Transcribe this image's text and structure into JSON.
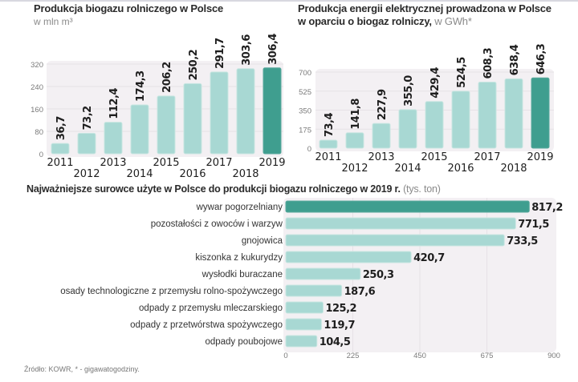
{
  "chart_data": [
    {
      "type": "bar",
      "title": "Produkcja biogazu rolniczego w Polsce",
      "subtitle": "w mln m³",
      "xlabel": "",
      "ylabel": "",
      "categories": [
        "2011",
        "2012",
        "2013",
        "2014",
        "2015",
        "2016",
        "2017",
        "2018",
        "2019"
      ],
      "values": [
        36.7,
        73.2,
        112.4,
        174.3,
        206.2,
        250.2,
        291.7,
        303.6,
        306.4
      ],
      "value_labels": [
        "36,7",
        "73,2",
        "112,4",
        "174,3",
        "206,2",
        "250,2",
        "291,7",
        "303,6",
        "306,4"
      ],
      "yticks": [
        0,
        80,
        160,
        240,
        320
      ],
      "ylim": [
        0,
        320
      ],
      "grid": true,
      "highlight_index": 8
    },
    {
      "type": "bar",
      "title": "Produkcja energii elektrycznej prowadzona w Polsce",
      "title_line2": "w oparciu o biogaz rolniczy,",
      "unit": "w GWh*",
      "xlabel": "",
      "ylabel": "",
      "categories": [
        "2011",
        "2012",
        "2013",
        "2014",
        "2015",
        "2016",
        "2017",
        "2018",
        "2019"
      ],
      "values": [
        73.4,
        141.8,
        227.9,
        355.0,
        429.4,
        524.5,
        608.3,
        638.4,
        646.3
      ],
      "value_labels": [
        "73,4",
        "141,8",
        "227,9",
        "355,0",
        "429,4",
        "524,5",
        "608,3",
        "638,4",
        "646,3"
      ],
      "yticks": [
        0,
        175,
        350,
        525,
        700
      ],
      "ylim": [
        0,
        700
      ],
      "grid": true,
      "highlight_index": 8
    },
    {
      "type": "bar",
      "orientation": "horizontal",
      "title": "Najważniejsze surowce użyte w Polsce do produkcji biogazu rolniczego w 2019 r.",
      "unit": "(tys. ton)",
      "categories": [
        "wywar pogorzelniany",
        "pozostałości z owoców i warzyw",
        "gnojowica",
        "kiszonka z kukurydzy",
        "wysłodki buraczane",
        "osady technologiczne z przemysłu rolno-spożywczego",
        "odpady z przemysłu mleczarskiego",
        "odpady z przetwórstwa spożywczego",
        "odpady poubojowe"
      ],
      "values": [
        817.2,
        771.5,
        733.5,
        420.7,
        250.3,
        187.6,
        125.2,
        119.7,
        104.5
      ],
      "value_labels": [
        "817,2",
        "771,5",
        "733,5",
        "420,7",
        "250,3",
        "187,6",
        "125,2",
        "119,7",
        "104,5"
      ],
      "xticks": [
        0,
        225,
        450,
        675,
        900
      ],
      "xlim": [
        0,
        900
      ],
      "grid": true,
      "highlight_index": 0
    }
  ],
  "colors": {
    "bar": "#a8d8d3",
    "bar_stroke": "#c9e6e2",
    "highlight": "#3f9e8f",
    "plot_bg": "#f3f0f3",
    "grid": "#e6e2e6",
    "label": "#1e1e1e",
    "tick": "#7a7a7a"
  },
  "source": "Źródło:  KOWR, * - gigawatogodziny."
}
